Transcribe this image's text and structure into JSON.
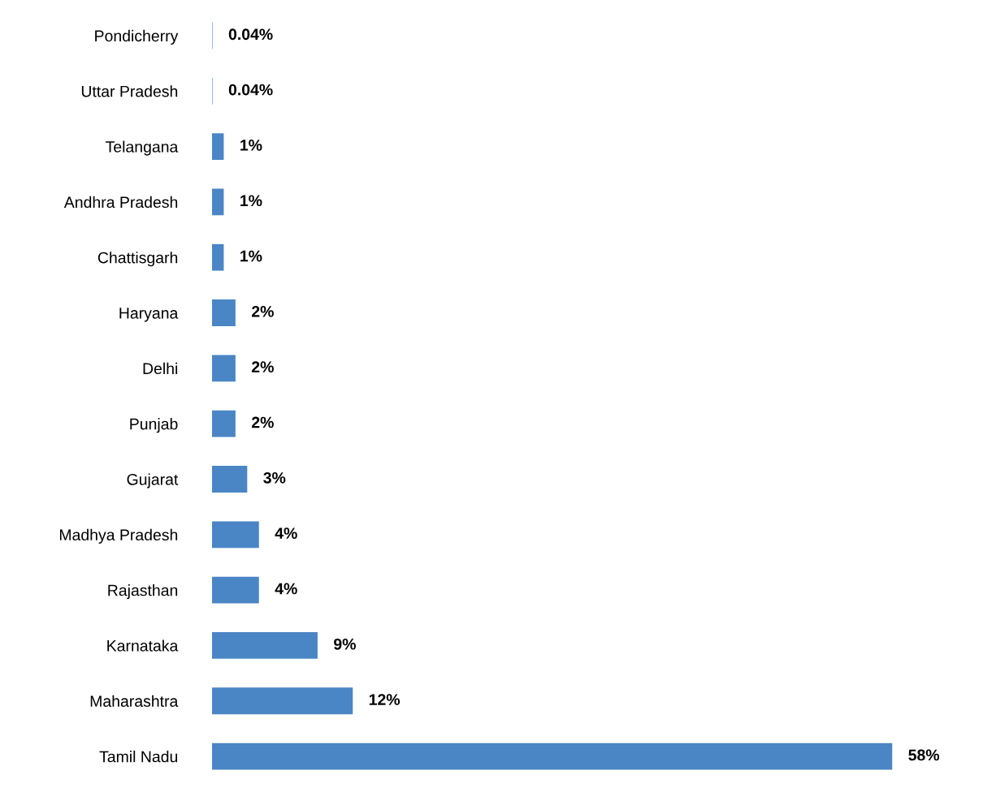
{
  "chart_data": {
    "type": "bar",
    "orientation": "horizontal",
    "categories": [
      "Pondicherry",
      "Uttar Pradesh",
      "Telangana",
      "Andhra Pradesh",
      "Chattisgarh",
      "Haryana",
      "Delhi",
      "Punjab",
      "Gujarat",
      "Madhya Pradesh",
      "Rajasthan",
      "Karnataka",
      "Maharashtra",
      "Tamil Nadu"
    ],
    "values": [
      0.04,
      0.04,
      1,
      1,
      1,
      2,
      2,
      2,
      3,
      4,
      4,
      9,
      12,
      58
    ],
    "value_labels": [
      "0.04%",
      "0.04%",
      "1%",
      "1%",
      "1%",
      "2%",
      "2%",
      "2%",
      "3%",
      "4%",
      "4%",
      "9%",
      "12%",
      "58%"
    ],
    "color": "#4a86c5",
    "tick_labels": "y",
    "grid": false,
    "legend": false
  }
}
